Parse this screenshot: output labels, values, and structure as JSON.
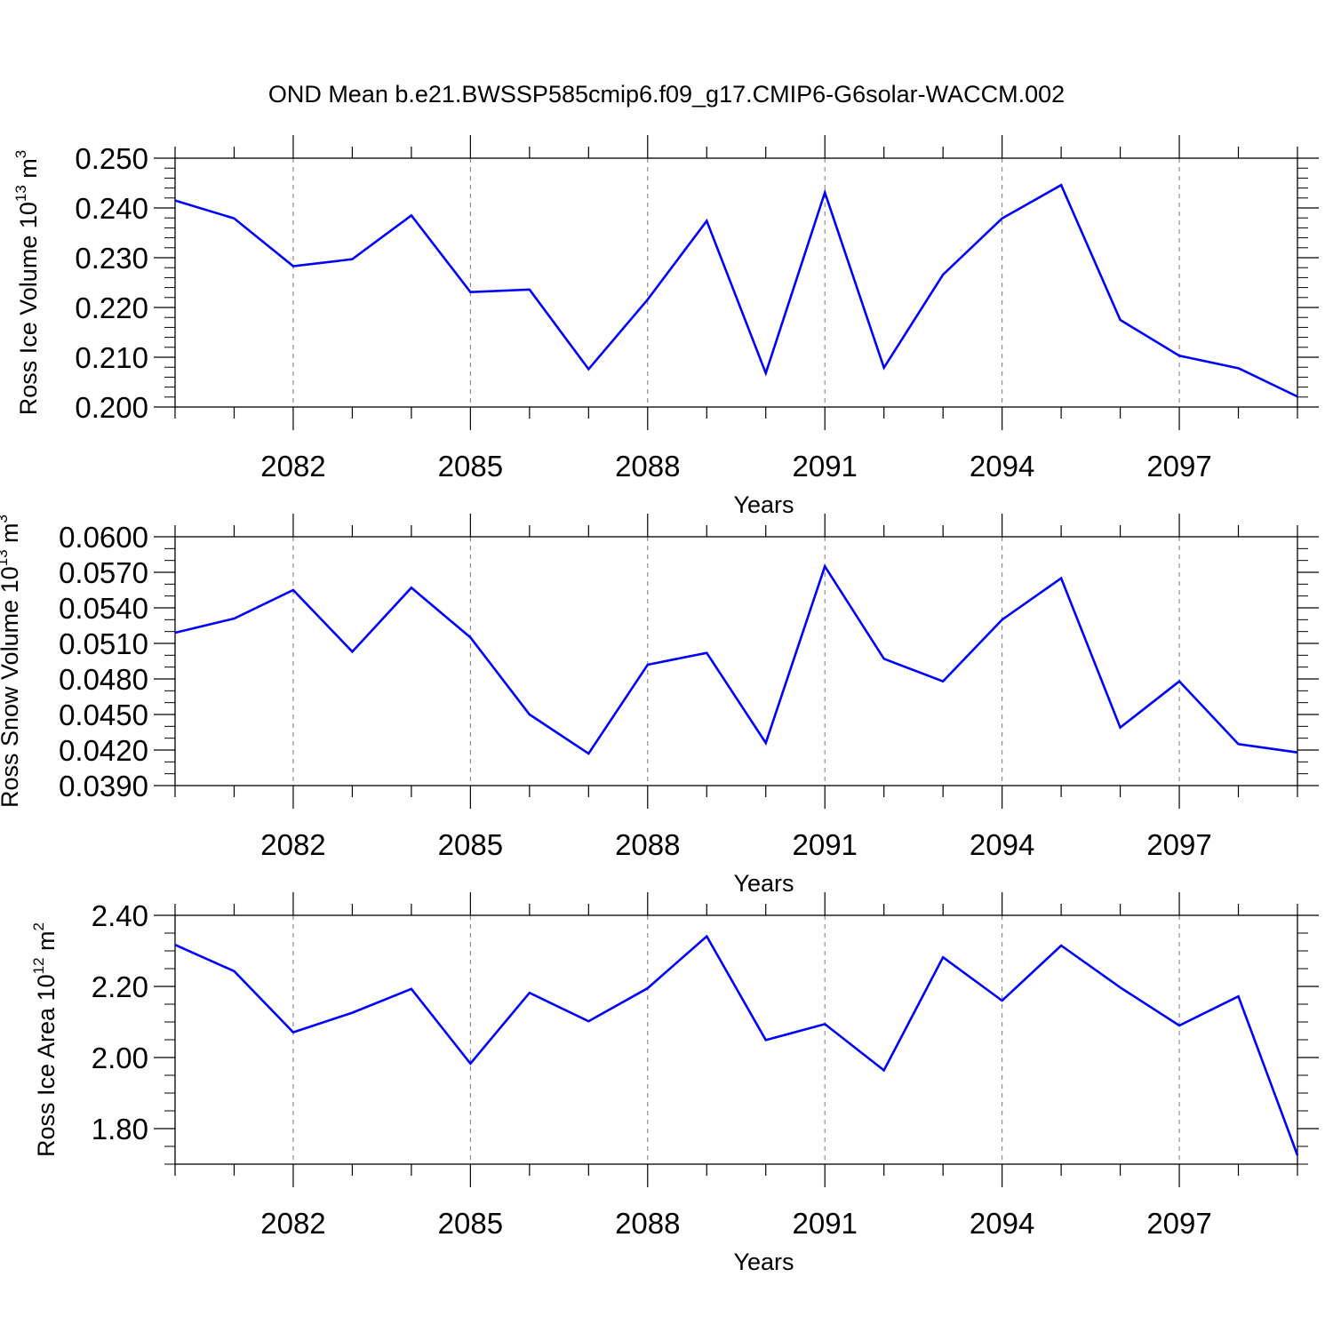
{
  "title": "OND Mean b.e21.BWSSP585cmip6.f09_g17.CMIP6-G6solar-WACCM.002",
  "colors": {
    "line": "#0000ff",
    "axis": "#000000",
    "grid": "#777777"
  },
  "chart_data": [
    {
      "type": "line",
      "xlabel": "Years",
      "ylabel": {
        "main": "Ross Ice Volume 10",
        "exp": "13",
        "unit": " m",
        "unit_exp": "3"
      },
      "x": [
        2080,
        2081,
        2082,
        2083,
        2084,
        2085,
        2086,
        2087,
        2088,
        2089,
        2090,
        2091,
        2092,
        2093,
        2094,
        2095,
        2096,
        2097,
        2098,
        2099
      ],
      "series": [
        {
          "values": [
            0.2415,
            0.2379,
            0.2283,
            0.2297,
            0.2385,
            0.2231,
            0.2236,
            0.2076,
            0.2216,
            0.2374,
            0.2068,
            0.2431,
            0.2079,
            0.2266,
            0.2379,
            0.2446,
            0.2175,
            0.2103,
            0.2078,
            0.2021
          ]
        }
      ],
      "xlim": [
        2080,
        2099
      ],
      "ylim": [
        0.2,
        0.25
      ],
      "xticks": [
        "2082",
        "2085",
        "2088",
        "2091",
        "2094",
        "2097"
      ],
      "yticks": [
        "0.200",
        "0.210",
        "0.220",
        "0.230",
        "0.240",
        "0.250"
      ],
      "grid": "vertical dashed at major x ticks"
    },
    {
      "type": "line",
      "xlabel": "Years",
      "ylabel": {
        "main": "Ross Snow Volume 10",
        "exp": "13",
        "unit": " m",
        "unit_exp": "3"
      },
      "x": [
        2080,
        2081,
        2082,
        2083,
        2084,
        2085,
        2086,
        2087,
        2088,
        2089,
        2090,
        2091,
        2092,
        2093,
        2094,
        2095,
        2096,
        2097,
        2098,
        2099
      ],
      "series": [
        {
          "values": [
            0.0519,
            0.0531,
            0.0555,
            0.0503,
            0.0557,
            0.0515,
            0.045,
            0.0417,
            0.0492,
            0.0502,
            0.0426,
            0.0575,
            0.0497,
            0.0478,
            0.053,
            0.0565,
            0.0439,
            0.0478,
            0.0425,
            0.0418
          ]
        }
      ],
      "xlim": [
        2080,
        2099
      ],
      "ylim": [
        0.039,
        0.06
      ],
      "xticks": [
        "2082",
        "2085",
        "2088",
        "2091",
        "2094",
        "2097"
      ],
      "yticks": [
        "0.0390",
        "0.0420",
        "0.0450",
        "0.0480",
        "0.0510",
        "0.0540",
        "0.0570",
        "0.0600"
      ],
      "grid": "vertical dashed at major x ticks"
    },
    {
      "type": "line",
      "xlabel": "Years",
      "ylabel": {
        "main": "Ross Ice Area 10",
        "exp": "12",
        "unit": " m",
        "unit_exp": "2"
      },
      "x": [
        2080,
        2081,
        2082,
        2083,
        2084,
        2085,
        2086,
        2087,
        2088,
        2089,
        2090,
        2091,
        2092,
        2093,
        2094,
        2095,
        2096,
        2097,
        2098,
        2099
      ],
      "series": [
        {
          "values": [
            2.317,
            2.243,
            2.071,
            2.126,
            2.193,
            1.983,
            2.182,
            2.102,
            2.195,
            2.341,
            2.049,
            2.094,
            1.964,
            2.282,
            2.16,
            2.315,
            2.197,
            2.09,
            2.172,
            1.725
          ]
        }
      ],
      "xlim": [
        2080,
        2099
      ],
      "ylim": [
        1.7,
        2.4
      ],
      "xticks": [
        "2082",
        "2085",
        "2088",
        "2091",
        "2094",
        "2097"
      ],
      "yticks": [
        "1.80",
        "2.00",
        "2.20",
        "2.40"
      ],
      "grid": "vertical dashed at major x ticks"
    }
  ]
}
